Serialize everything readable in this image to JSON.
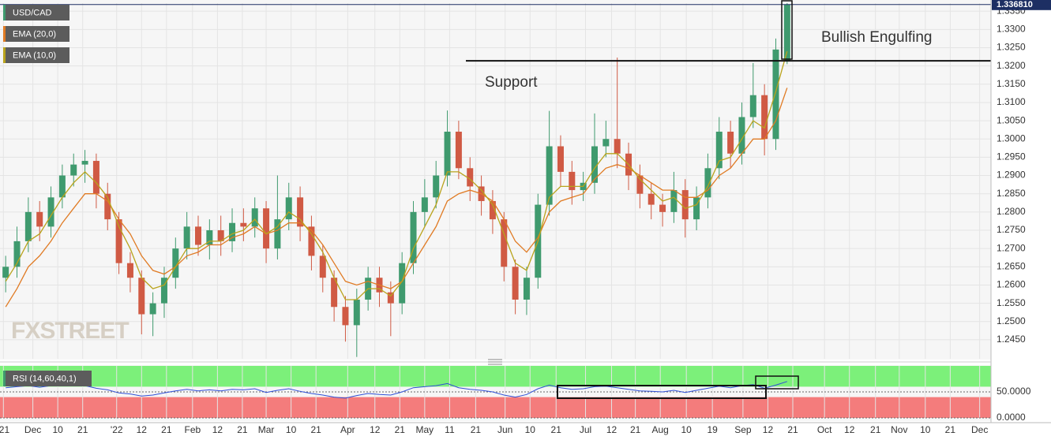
{
  "chart_data": [
    {
      "type": "candlestick",
      "series": [
        {
          "name": "USD/CAD",
          "up_color": "#3f9a6e",
          "down_color": "#d05a44",
          "open": [
            1.262,
            1.265,
            1.272,
            1.28,
            1.276,
            1.284,
            1.29,
            1.293,
            1.294,
            1.285,
            1.278,
            1.266,
            1.262,
            1.252,
            1.255,
            1.262,
            1.27,
            1.276,
            1.271,
            1.275,
            1.272,
            1.277,
            1.276,
            1.281,
            1.27,
            1.278,
            1.284,
            1.276,
            1.268,
            1.262,
            1.254,
            1.249,
            1.256,
            1.262,
            1.258,
            1.255,
            1.266,
            1.28,
            1.284,
            1.29,
            1.302,
            1.292,
            1.287,
            1.283,
            1.278,
            1.265,
            1.256,
            1.262,
            1.282,
            1.298,
            1.291,
            1.286,
            1.288,
            1.298,
            1.3,
            1.296,
            1.29,
            1.285,
            1.282,
            1.28,
            1.286,
            1.278,
            1.284,
            1.292,
            1.302,
            1.296,
            1.306,
            1.312,
            1.3,
            1.3215
          ],
          "high": [
            1.268,
            1.276,
            1.284,
            1.283,
            1.287,
            1.293,
            1.296,
            1.297,
            1.296,
            1.288,
            1.28,
            1.269,
            1.264,
            1.258,
            1.265,
            1.273,
            1.28,
            1.279,
            1.278,
            1.279,
            1.281,
            1.281,
            1.284,
            1.283,
            1.29,
            1.288,
            1.287,
            1.279,
            1.271,
            1.264,
            1.257,
            1.259,
            1.265,
            1.265,
            1.261,
            1.269,
            1.283,
            1.289,
            1.294,
            1.3078,
            1.305,
            1.295,
            1.29,
            1.286,
            1.28,
            1.267,
            1.265,
            1.285,
            1.3077,
            1.301,
            1.294,
            1.291,
            1.307,
            1.305,
            1.3223,
            1.299,
            1.293,
            1.288,
            1.285,
            1.291,
            1.289,
            1.287,
            1.296,
            1.306,
            1.305,
            1.31,
            1.3208,
            1.315,
            1.3275,
            1.3372
          ],
          "low": [
            1.258,
            1.262,
            1.269,
            1.272,
            1.273,
            1.281,
            1.287,
            1.288,
            1.281,
            1.275,
            1.263,
            1.258,
            1.2465,
            1.246,
            1.251,
            1.259,
            1.267,
            1.268,
            1.267,
            1.268,
            1.269,
            1.272,
            1.273,
            1.266,
            1.267,
            1.275,
            1.272,
            1.264,
            1.258,
            1.25,
            1.2445,
            1.2403,
            1.253,
            1.254,
            1.246,
            1.252,
            1.263,
            1.276,
            1.281,
            1.287,
            1.289,
            1.283,
            1.279,
            1.274,
            1.261,
            1.252,
            1.2518,
            1.259,
            1.279,
            1.287,
            1.282,
            1.283,
            1.285,
            1.295,
            1.292,
            1.286,
            1.281,
            1.278,
            1.276,
            1.277,
            1.273,
            1.275,
            1.281,
            1.289,
            1.292,
            1.293,
            1.303,
            1.2955,
            1.297,
            1.3205
          ],
          "close": [
            1.265,
            1.272,
            1.28,
            1.276,
            1.284,
            1.29,
            1.293,
            1.294,
            1.285,
            1.278,
            1.266,
            1.262,
            1.252,
            1.255,
            1.262,
            1.27,
            1.276,
            1.271,
            1.275,
            1.272,
            1.277,
            1.276,
            1.281,
            1.27,
            1.278,
            1.284,
            1.276,
            1.268,
            1.262,
            1.254,
            1.249,
            1.256,
            1.262,
            1.258,
            1.255,
            1.266,
            1.28,
            1.284,
            1.29,
            1.302,
            1.292,
            1.287,
            1.283,
            1.278,
            1.265,
            1.256,
            1.262,
            1.282,
            1.298,
            1.291,
            1.286,
            1.288,
            1.298,
            1.3,
            1.296,
            1.29,
            1.285,
            1.282,
            1.28,
            1.286,
            1.278,
            1.284,
            1.292,
            1.302,
            1.296,
            1.306,
            1.312,
            1.3,
            1.3245,
            1.3368
          ]
        },
        {
          "name": "EMA (20,0)",
          "color": "#e07b24",
          "values": [
            1.254,
            1.259,
            1.265,
            1.268,
            1.272,
            1.277,
            1.281,
            1.285,
            1.285,
            1.283,
            1.278,
            1.274,
            1.268,
            1.264,
            1.263,
            1.265,
            1.268,
            1.269,
            1.271,
            1.271,
            1.273,
            1.274,
            1.276,
            1.274,
            1.275,
            1.277,
            1.277,
            1.275,
            1.271,
            1.266,
            1.261,
            1.26,
            1.261,
            1.26,
            1.259,
            1.261,
            1.266,
            1.271,
            1.276,
            1.283,
            1.285,
            1.286,
            1.285,
            1.283,
            1.278,
            1.272,
            1.269,
            1.273,
            1.28,
            1.283,
            1.284,
            1.285,
            1.289,
            1.292,
            1.293,
            1.292,
            1.29,
            1.288,
            1.286,
            1.286,
            1.284,
            1.284,
            1.286,
            1.29,
            1.292,
            1.296,
            1.3,
            1.3,
            1.305,
            1.314
          ]
        },
        {
          "name": "EMA (10,0)",
          "color": "#b9a31c",
          "values": [
            1.261,
            1.266,
            1.272,
            1.274,
            1.279,
            1.284,
            1.288,
            1.291,
            1.288,
            1.284,
            1.276,
            1.27,
            1.262,
            1.259,
            1.26,
            1.265,
            1.27,
            1.27,
            1.272,
            1.272,
            1.274,
            1.275,
            1.278,
            1.274,
            1.276,
            1.28,
            1.278,
            1.274,
            1.269,
            1.262,
            1.256,
            1.256,
            1.259,
            1.259,
            1.257,
            1.261,
            1.27,
            1.276,
            1.282,
            1.291,
            1.291,
            1.289,
            1.286,
            1.282,
            1.274,
            1.266,
            1.264,
            1.272,
            1.284,
            1.287,
            1.287,
            1.287,
            1.292,
            1.296,
            1.296,
            1.293,
            1.289,
            1.286,
            1.283,
            1.284,
            1.281,
            1.282,
            1.287,
            1.294,
            1.295,
            1.3,
            1.305,
            1.303,
            1.313,
            1.324
          ]
        }
      ],
      "xlim": [
        -0.5,
        87
      ],
      "xticks": [
        {
          "value": -0.2,
          "label": "'21"
        },
        {
          "value": 2.4,
          "label": "Dec"
        },
        {
          "value": 4.6,
          "label": "10"
        },
        {
          "value": 6.8,
          "label": "21"
        },
        {
          "value": 9.8,
          "label": "'22"
        },
        {
          "value": 12.0,
          "label": "12"
        },
        {
          "value": 14.2,
          "label": "21"
        },
        {
          "value": 16.5,
          "label": "Feb"
        },
        {
          "value": 18.7,
          "label": "12"
        },
        {
          "value": 20.9,
          "label": "21"
        },
        {
          "value": 23.0,
          "label": "Mar"
        },
        {
          "value": 25.2,
          "label": "10"
        },
        {
          "value": 27.4,
          "label": "21"
        },
        {
          "value": 30.2,
          "label": "Apr"
        },
        {
          "value": 32.6,
          "label": "12"
        },
        {
          "value": 34.8,
          "label": "21"
        },
        {
          "value": 37.0,
          "label": "May"
        },
        {
          "value": 39.2,
          "label": "11"
        },
        {
          "value": 41.5,
          "label": "21"
        },
        {
          "value": 44.1,
          "label": "Jun"
        },
        {
          "value": 46.3,
          "label": "10"
        },
        {
          "value": 48.6,
          "label": "21"
        },
        {
          "value": 51.2,
          "label": "Jul"
        },
        {
          "value": 53.5,
          "label": "12"
        },
        {
          "value": 55.6,
          "label": "21"
        },
        {
          "value": 57.8,
          "label": "Aug"
        },
        {
          "value": 60.1,
          "label": "10"
        },
        {
          "value": 62.4,
          "label": "19"
        },
        {
          "value": 65.1,
          "label": "Sep"
        },
        {
          "value": 67.3,
          "label": "12"
        },
        {
          "value": 69.5,
          "label": "21"
        },
        {
          "value": 72.3,
          "label": "Oct"
        },
        {
          "value": 74.5,
          "label": "12"
        },
        {
          "value": 76.8,
          "label": "21"
        },
        {
          "value": 78.9,
          "label": "Nov"
        },
        {
          "value": 81.2,
          "label": "10"
        },
        {
          "value": 83.4,
          "label": "21"
        },
        {
          "value": 86.0,
          "label": "Dec"
        }
      ],
      "ylim": [
        1.2398,
        1.3372
      ],
      "yticks": [
        {
          "value": 1.245,
          "label": "1.2450"
        },
        {
          "value": 1.25,
          "label": "1.2500"
        },
        {
          "value": 1.255,
          "label": "1.2550"
        },
        {
          "value": 1.26,
          "label": "1.2600"
        },
        {
          "value": 1.265,
          "label": "1.2650"
        },
        {
          "value": 1.27,
          "label": "1.2700"
        },
        {
          "value": 1.275,
          "label": "1.2750"
        },
        {
          "value": 1.28,
          "label": "1.2800"
        },
        {
          "value": 1.285,
          "label": "1.2850"
        },
        {
          "value": 1.29,
          "label": "1.2900"
        },
        {
          "value": 1.295,
          "label": "1.2950"
        },
        {
          "value": 1.3,
          "label": "1.3000"
        },
        {
          "value": 1.305,
          "label": "1.3050"
        },
        {
          "value": 1.31,
          "label": "1.3100"
        },
        {
          "value": 1.315,
          "label": "1.3150"
        },
        {
          "value": 1.32,
          "label": "1.3200"
        },
        {
          "value": 1.325,
          "label": "1.3250"
        },
        {
          "value": 1.33,
          "label": "1.3300"
        },
        {
          "value": 1.335,
          "label": "1.3350"
        }
      ],
      "grid": true,
      "last_price": {
        "value": 1.33681,
        "label": "1.336810",
        "color": "#1d2f63"
      },
      "support_level": 1.3214,
      "annotations": [
        "Support",
        "Bullish Engulfing"
      ],
      "watermark": "FXSTREET"
    },
    {
      "type": "line",
      "name": "RSI (14,60,40,1)",
      "color": "#2f4fd6",
      "values": [
        58,
        60,
        62,
        59,
        62,
        63,
        63,
        62,
        57,
        54,
        48,
        46,
        42,
        44,
        48,
        52,
        55,
        52,
        54,
        52,
        55,
        54,
        56,
        49,
        53,
        56,
        51,
        47,
        44,
        40,
        38,
        43,
        47,
        45,
        44,
        50,
        58,
        60,
        62,
        66,
        58,
        55,
        53,
        50,
        44,
        40,
        45,
        56,
        63,
        58,
        55,
        56,
        60,
        61,
        58,
        55,
        52,
        51,
        50,
        53,
        49,
        53,
        57,
        61,
        58,
        62,
        64,
        57,
        63,
        70
      ],
      "ylim": [
        0,
        100
      ],
      "yticks": [
        {
          "value": 50,
          "label": "50.0000"
        },
        {
          "value": 0,
          "label": "0.0000"
        }
      ],
      "bands": [
        {
          "from": 60,
          "to": 100,
          "color": "#7cf07a"
        },
        {
          "from": 0,
          "to": 40,
          "color": "#f47c7c"
        }
      ]
    }
  ]
}
